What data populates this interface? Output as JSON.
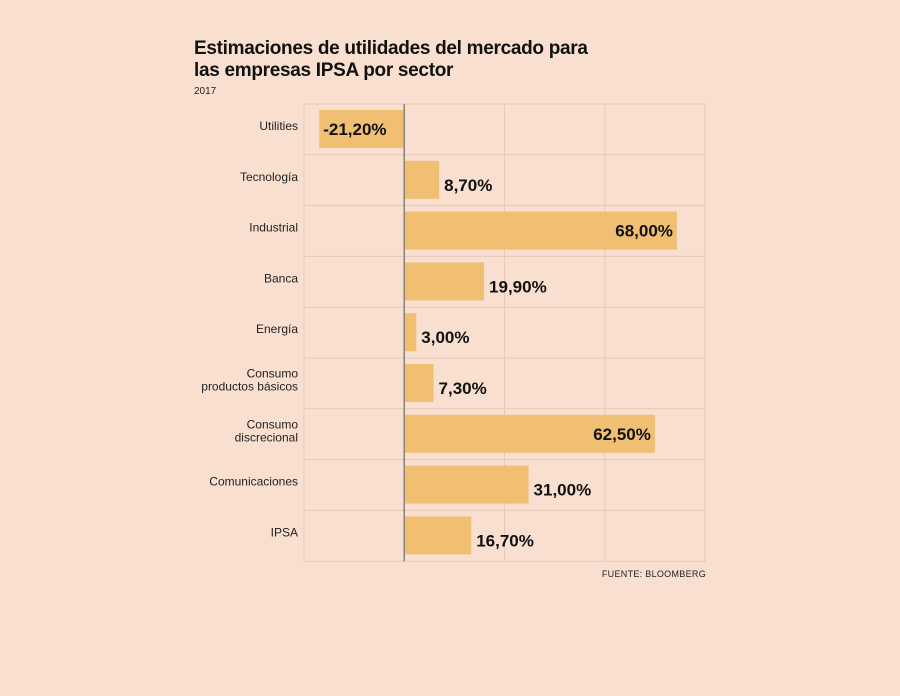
{
  "chart_data": {
    "type": "bar",
    "orientation": "horizontal",
    "title": "Estimaciones de utilidades del mercado para las empresas IPSA por sector",
    "subtitle": "2017",
    "source": "FUENTE: BLOOMBERG",
    "categories": [
      [
        "Utilities"
      ],
      [
        "Tecnología"
      ],
      [
        "Industrial"
      ],
      [
        "Banca"
      ],
      [
        "Energía"
      ],
      [
        "Consumo",
        "productos básicos"
      ],
      [
        "Consumo",
        "discrecional"
      ],
      [
        "Comunicaciones"
      ],
      [
        "IPSA"
      ]
    ],
    "values": [
      -21.2,
      8.7,
      68.0,
      19.9,
      3.0,
      7.3,
      62.5,
      31.0,
      16.7
    ],
    "value_labels": [
      "-21,20%",
      "8,70%",
      "68,00%",
      "19,90%",
      "3,00%",
      "7,30%",
      "62,50%",
      "31,00%",
      "16,70%"
    ],
    "xlim": [
      -25,
      75
    ],
    "grid": true,
    "bar_color": "#f0bf72",
    "grid_color": "#e6c9b8",
    "axis_color": "#8a8278"
  }
}
